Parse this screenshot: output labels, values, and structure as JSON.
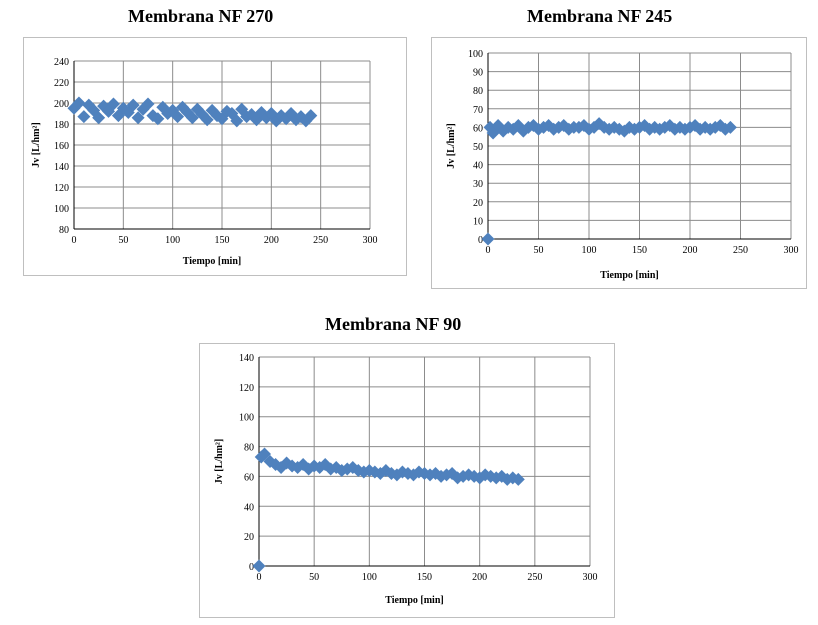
{
  "charts": [
    {
      "title": "Membrana NF 270",
      "xlabel": "Tiempo [min]",
      "ylabel": "Jv [L/hm²]",
      "xlim": [
        0,
        300
      ],
      "ylim": [
        80,
        240
      ],
      "xticks": [
        0,
        50,
        100,
        150,
        200,
        250,
        300
      ],
      "yticks": [
        80,
        100,
        120,
        140,
        160,
        180,
        200,
        220,
        240
      ],
      "color": "#4f81bd"
    },
    {
      "title": "Membrana NF 245",
      "xlabel": "Tiempo [min]",
      "ylabel": "Jv [L/hm²]",
      "xlim": [
        0,
        300
      ],
      "ylim": [
        0,
        100
      ],
      "xticks": [
        0,
        50,
        100,
        150,
        200,
        250,
        300
      ],
      "yticks": [
        0,
        10,
        20,
        30,
        40,
        50,
        60,
        70,
        80,
        90,
        100
      ],
      "color": "#4f81bd"
    },
    {
      "title": "Membrana NF 90",
      "xlabel": "Tiempo [min]",
      "ylabel": "Jv [L/hm²]",
      "xlim": [
        0,
        300
      ],
      "ylim": [
        0,
        140
      ],
      "xticks": [
        0,
        50,
        100,
        150,
        200,
        250,
        300
      ],
      "yticks": [
        0,
        20,
        40,
        60,
        80,
        100,
        120,
        140
      ],
      "color": "#4f81bd"
    }
  ],
  "chart_data": [
    {
      "type": "scatter",
      "title": "Membrana NF 270",
      "xlabel": "Tiempo [min]",
      "ylabel": "Jv [L/hm²]",
      "xlim": [
        0,
        300
      ],
      "ylim": [
        80,
        240
      ],
      "grid": true,
      "marker": "diamond",
      "x": [
        0,
        5,
        10,
        15,
        20,
        25,
        30,
        35,
        40,
        45,
        50,
        55,
        60,
        65,
        70,
        75,
        80,
        85,
        90,
        95,
        100,
        105,
        110,
        115,
        120,
        125,
        130,
        135,
        140,
        145,
        150,
        155,
        160,
        165,
        170,
        175,
        180,
        185,
        190,
        195,
        200,
        205,
        210,
        215,
        220,
        225,
        230,
        235,
        240
      ],
      "y": [
        195,
        200,
        187,
        198,
        193,
        186,
        197,
        192,
        199,
        188,
        195,
        191,
        198,
        186,
        194,
        199,
        188,
        185,
        196,
        190,
        193,
        187,
        196,
        191,
        186,
        194,
        189,
        184,
        193,
        188,
        185,
        192,
        190,
        183,
        194,
        187,
        189,
        184,
        191,
        186,
        190,
        183,
        188,
        185,
        190,
        184,
        187,
        183,
        188
      ]
    },
    {
      "type": "scatter",
      "title": "Membrana NF 245",
      "xlabel": "Tiempo [min]",
      "ylabel": "Jv [L/hm²]",
      "xlim": [
        0,
        300
      ],
      "ylim": [
        0,
        100
      ],
      "grid": true,
      "marker": "diamond",
      "x": [
        0,
        2,
        5,
        10,
        15,
        20,
        25,
        30,
        35,
        40,
        45,
        50,
        55,
        60,
        65,
        70,
        75,
        80,
        85,
        90,
        95,
        100,
        105,
        110,
        115,
        120,
        125,
        130,
        135,
        140,
        145,
        150,
        155,
        160,
        165,
        170,
        175,
        180,
        185,
        190,
        195,
        200,
        205,
        210,
        215,
        220,
        225,
        230,
        235,
        240
      ],
      "y": [
        0,
        60,
        57,
        61,
        58,
        60,
        59,
        61,
        58,
        60,
        61,
        59,
        60,
        61,
        59,
        60,
        61,
        59,
        60,
        60,
        61,
        59,
        60,
        62,
        60,
        59,
        60,
        59,
        58,
        60,
        59,
        60,
        61,
        59,
        60,
        59,
        60,
        61,
        59,
        60,
        59,
        60,
        61,
        59,
        60,
        59,
        60,
        61,
        59,
        60
      ]
    },
    {
      "type": "scatter",
      "title": "Membrana NF 90",
      "xlabel": "Tiempo [min]",
      "ylabel": "Jv [L/hm²]",
      "xlim": [
        0,
        300
      ],
      "ylim": [
        0,
        140
      ],
      "grid": true,
      "marker": "diamond",
      "x": [
        0,
        2,
        5,
        10,
        15,
        20,
        25,
        30,
        35,
        40,
        45,
        50,
        55,
        60,
        65,
        70,
        75,
        80,
        85,
        90,
        95,
        100,
        105,
        110,
        115,
        120,
        125,
        130,
        135,
        140,
        145,
        150,
        155,
        160,
        165,
        170,
        175,
        180,
        185,
        190,
        195,
        200,
        205,
        210,
        215,
        220,
        225,
        230,
        235
      ],
      "y": [
        0,
        73,
        75,
        70,
        68,
        66,
        69,
        67,
        66,
        68,
        65,
        67,
        66,
        68,
        65,
        66,
        64,
        65,
        66,
        64,
        63,
        64,
        63,
        62,
        64,
        62,
        61,
        63,
        62,
        61,
        63,
        62,
        61,
        62,
        60,
        61,
        62,
        59,
        60,
        61,
        60,
        59,
        61,
        60,
        59,
        60,
        58,
        59,
        58
      ]
    }
  ]
}
